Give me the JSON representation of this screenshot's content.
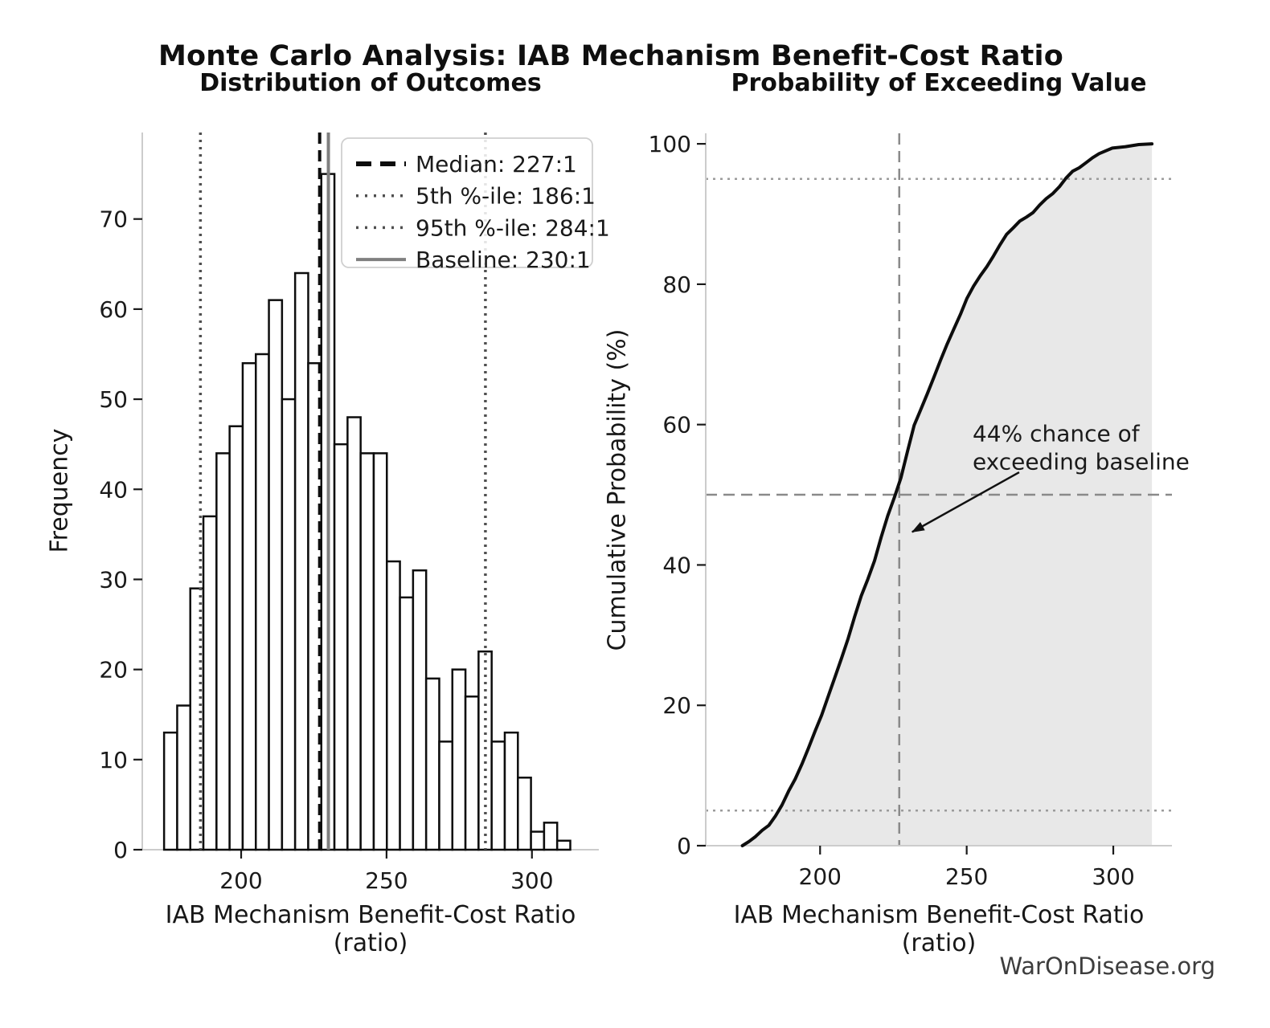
{
  "figure": {
    "title": "Monte Carlo Analysis: IAB Mechanism Benefit-Cost Ratio",
    "footer": "WarOnDisease.org"
  },
  "colors": {
    "background": "#ffffff",
    "bar_fill": "#ffffff",
    "bar_edge": "#0d0d0d",
    "cdf_line": "#0d0d0d",
    "cdf_fill": "#e8e8e8",
    "spine": "#cccccc",
    "tick_mark": "#1a1a1a",
    "tick_label": "#1a1a1a",
    "legend_border": "#cfcfcf",
    "annotation_text": "#1a1a1a",
    "annotation_arrow": "#111111"
  },
  "chart_data": [
    {
      "type": "bar",
      "subtype": "histogram",
      "title": "Distribution of Outcomes",
      "xlabel": "IAB Mechanism Benefit-Cost Ratio (ratio)",
      "ylabel": "Frequency",
      "xlim": [
        166,
        323
      ],
      "ylim": [
        0,
        79.6
      ],
      "x_ticks": [
        200,
        250,
        300
      ],
      "y_ticks": [
        0,
        10,
        20,
        30,
        40,
        50,
        60,
        70
      ],
      "grid": false,
      "n_samples": 1000,
      "bin_start": 173.5,
      "bin_width": 4.506,
      "counts": [
        13,
        16,
        29,
        37,
        44,
        47,
        54,
        55,
        61,
        50,
        64,
        54,
        75,
        45,
        48,
        44,
        44,
        32,
        28,
        31,
        19,
        12,
        20,
        17,
        22,
        12,
        13,
        8,
        2,
        3,
        1
      ],
      "legend_position": "upper right",
      "reference_lines": [
        {
          "name": "median-line",
          "value": 227,
          "style": "dashed",
          "width": 4,
          "color": "#0d0d0d",
          "label": "Median: 227:1"
        },
        {
          "name": "percentile-5-line",
          "value": 186,
          "style": "dotted",
          "width": 3.5,
          "color": "#4f4f4f",
          "label": "5th %-ile: 186:1"
        },
        {
          "name": "percentile-95-line",
          "value": 284,
          "style": "dotted",
          "width": 3.5,
          "color": "#4f4f4f",
          "label": "95th %-ile: 284:1"
        },
        {
          "name": "baseline-line",
          "value": 230,
          "style": "solid",
          "width": 4,
          "color": "#7f7f7f",
          "label": "Baseline: 230:1"
        }
      ]
    },
    {
      "type": "area",
      "subtype": "ecdf",
      "title": "Probability of Exceeding Value",
      "xlabel": "IAB Mechanism Benefit-Cost Ratio (ratio)",
      "ylabel": "Cumulative Probability (%)",
      "xlim": [
        161,
        320
      ],
      "ylim": [
        0,
        101.5
      ],
      "x_ticks": [
        200,
        250,
        300
      ],
      "y_ticks": [
        0,
        20,
        40,
        60,
        80,
        100
      ],
      "grid": false,
      "curve": {
        "x_start": 173.5,
        "x_step": 4.506,
        "y_pct": [
          0,
          1.3,
          2.9,
          5.8,
          9.5,
          13.9,
          18.6,
          24.0,
          29.5,
          35.6,
          40.6,
          47.0,
          52.4,
          59.9,
          64.4,
          69.2,
          73.6,
          78.0,
          81.2,
          84.0,
          87.1,
          89.0,
          90.2,
          92.2,
          93.9,
          96.1,
          97.3,
          98.6,
          99.4,
          99.6,
          99.9,
          100.0
        ]
      },
      "reference_lines": [
        {
          "name": "p95-hline",
          "axis": "y",
          "value": 95,
          "style": "dotted",
          "width": 2.5,
          "color": "#9b9b9b"
        },
        {
          "name": "median-prob-hline",
          "axis": "y",
          "value": 50,
          "style": "dashed",
          "width": 2.5,
          "color": "#8a8a8a"
        },
        {
          "name": "p5-hline",
          "axis": "y",
          "value": 5,
          "style": "dotted",
          "width": 2.5,
          "color": "#9b9b9b"
        },
        {
          "name": "median-vline",
          "axis": "x",
          "value": 227,
          "style": "dashed",
          "width": 2.5,
          "color": "#8a8a8a"
        }
      ],
      "annotation": {
        "lines": [
          "44% chance of",
          "exceeding baseline"
        ],
        "text_x": 252,
        "text_y": 57.6,
        "arrow_from_x": 267.9,
        "arrow_from_y": 53.2,
        "arrow_to_x": 231.4,
        "arrow_to_y": 44.7
      }
    }
  ]
}
